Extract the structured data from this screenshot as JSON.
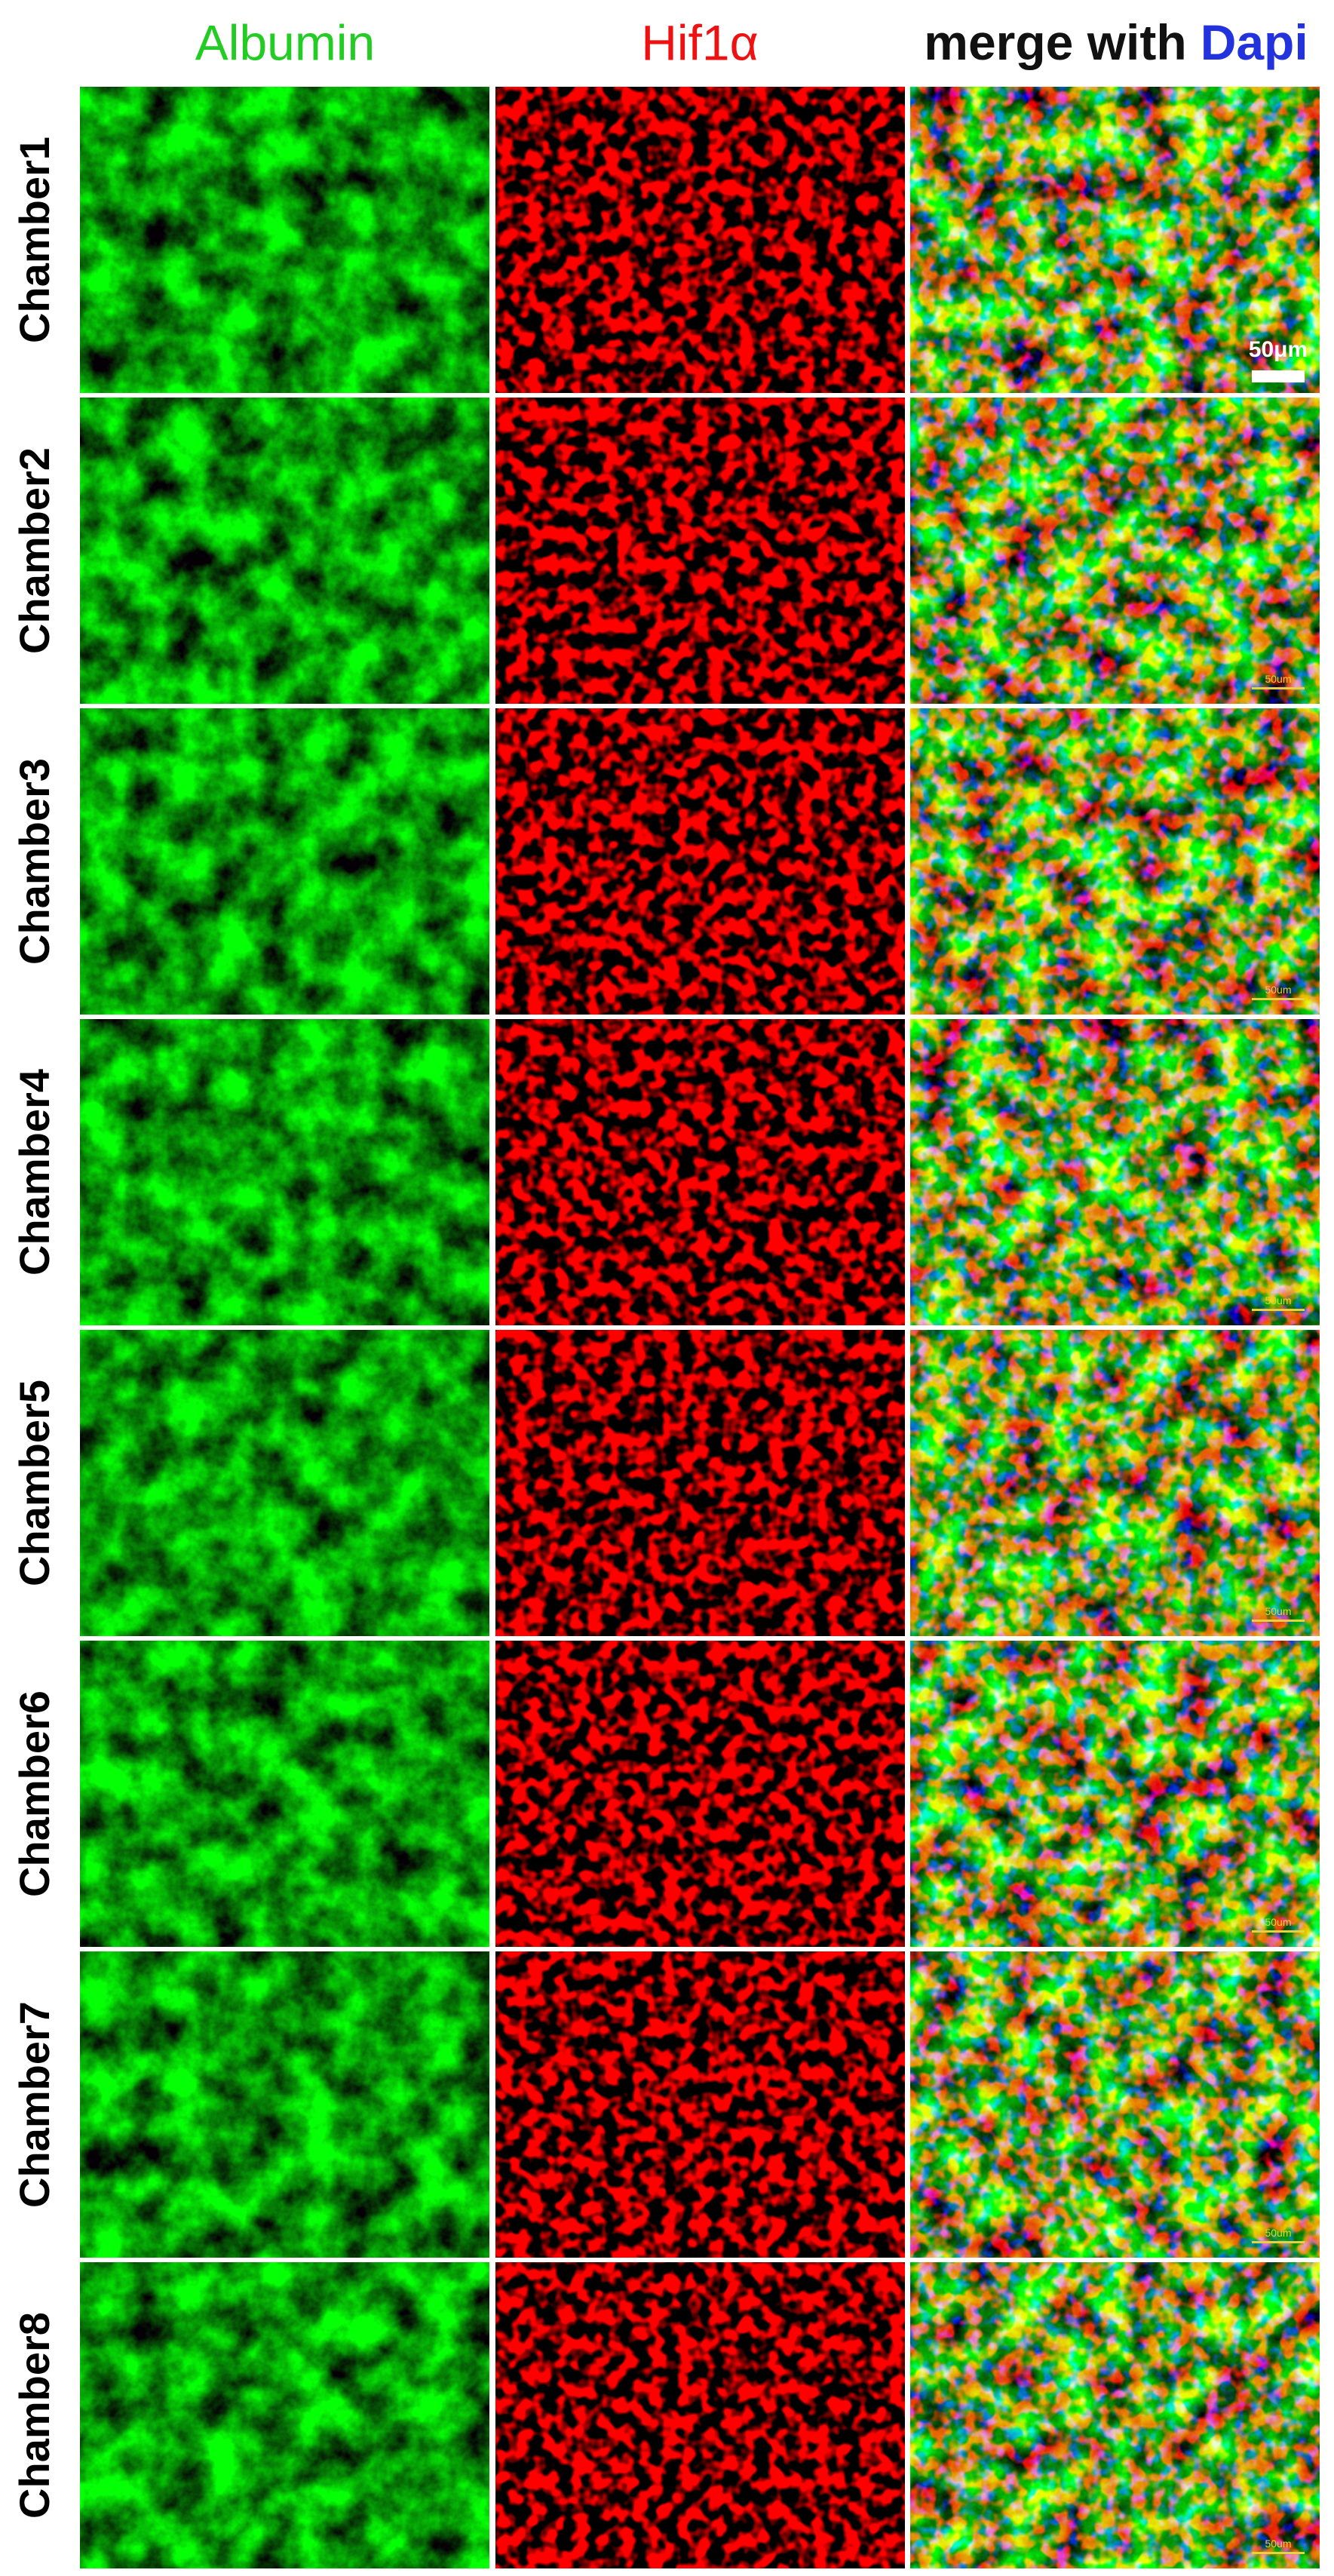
{
  "header": {
    "columns": [
      {
        "label": "Albumin"
      },
      {
        "label": "Hif1α"
      },
      {
        "label": "merge with",
        "label_accent": "Dapi"
      }
    ]
  },
  "rows": [
    {
      "label": "Chamber1",
      "scale_bar": "50μm"
    },
    {
      "label": "Chamber2",
      "scale_bar": "50um"
    },
    {
      "label": "Chamber3",
      "scale_bar": "50um"
    },
    {
      "label": "Chamber4",
      "scale_bar": "50um"
    },
    {
      "label": "Chamber5",
      "scale_bar": "50um"
    },
    {
      "label": "Chamber6",
      "scale_bar": "50um"
    },
    {
      "label": "Chamber7",
      "scale_bar": "50um"
    },
    {
      "label": "Chamber8",
      "scale_bar": "50um"
    }
  ]
}
